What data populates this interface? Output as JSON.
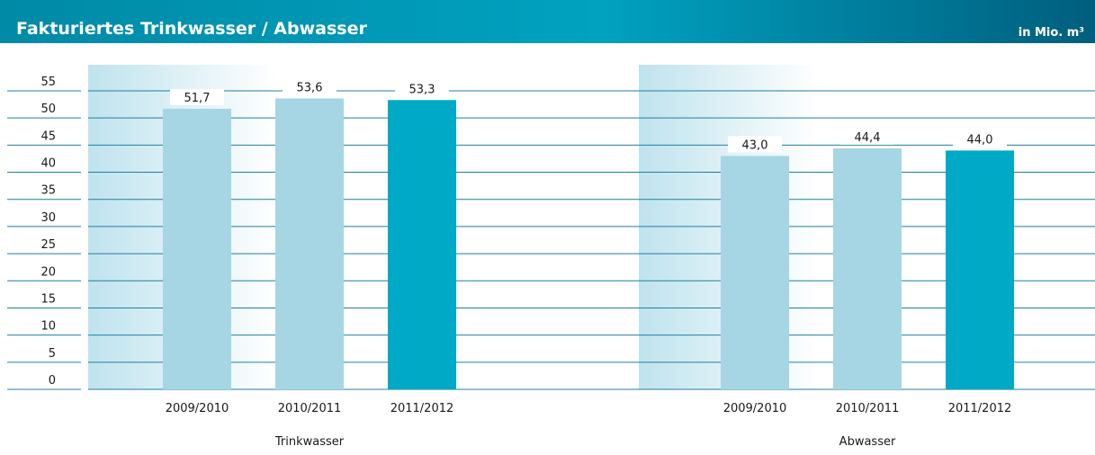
{
  "header": {
    "title": "Fakturiertes Trinkwasser / Abwasser",
    "unit": "in Mio. m³"
  },
  "chart_data": [
    {
      "type": "bar",
      "xlabel": "Trinkwasser",
      "categories": [
        "2009/2010",
        "2010/2011",
        "2011/2012"
      ],
      "values": [
        51.7,
        53.6,
        53.3
      ],
      "value_labels": [
        "51,7",
        "53,6",
        "53,3"
      ],
      "colors": [
        "#a6d6e3",
        "#a6d6e3",
        "#00a9c5"
      ],
      "ylim": [
        0,
        55
      ],
      "yticks": [
        0,
        5,
        10,
        15,
        20,
        25,
        30,
        35,
        40,
        45,
        50,
        55
      ],
      "grid": true
    },
    {
      "type": "bar",
      "xlabel": "Abwasser",
      "categories": [
        "2009/2010",
        "2010/2011",
        "2011/2012"
      ],
      "values": [
        43.0,
        44.4,
        44.0
      ],
      "value_labels": [
        "43,0",
        "44,4",
        "44,0"
      ],
      "colors": [
        "#a6d6e3",
        "#a6d6e3",
        "#00a9c5"
      ],
      "ylim": [
        0,
        55
      ],
      "yticks": [
        0,
        5,
        10,
        15,
        20,
        25,
        30,
        35,
        40,
        45,
        50,
        55
      ],
      "grid": true
    }
  ]
}
